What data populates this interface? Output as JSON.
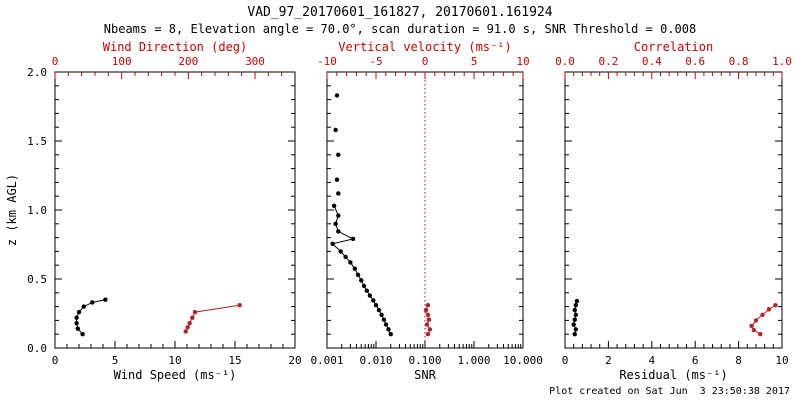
{
  "page": {
    "title": "VAD_97_20170601_161827, 20170601.161924",
    "subtitle": "Nbeams = 8, Elevation angle = 70.0°, scan duration = 91.0 s, SNR Threshold = 0.008",
    "footer": "Plot created on Sat Jun  3 23:50:38 2017",
    "axis_color": "#000000",
    "accent_color": "#cc0000"
  },
  "chart_data": [
    {
      "type": "line",
      "xlabel": "Wind Speed (ms⁻¹)",
      "ylabel": "z (km AGL)",
      "x2label": "Wind Direction (deg)",
      "xscale": "linear",
      "xlim": [
        0,
        20
      ],
      "x2lim": [
        0,
        360
      ],
      "ylim": [
        0,
        2.0
      ],
      "grid": false,
      "legend": false,
      "show_ylabels": true,
      "xticks": [
        {
          "v": 0,
          "l": "0"
        },
        {
          "v": 5,
          "l": "5"
        },
        {
          "v": 10,
          "l": "10"
        },
        {
          "v": 15,
          "l": "15"
        },
        {
          "v": 20,
          "l": "20"
        }
      ],
      "x2ticks": [
        {
          "v": 0,
          "l": "0"
        },
        {
          "v": 100,
          "l": "100"
        },
        {
          "v": 200,
          "l": "200"
        },
        {
          "v": 300,
          "l": "300"
        }
      ],
      "yticks": [
        {
          "v": 0,
          "l": "0.0"
        },
        {
          "v": 0.5,
          "l": "0.5"
        },
        {
          "v": 1,
          "l": "1.0"
        },
        {
          "v": 1.5,
          "l": "1.5"
        },
        {
          "v": 2,
          "l": "2.0"
        }
      ],
      "series": [
        {
          "name": "wind-speed",
          "axis": "x",
          "color": "#000000",
          "points": [
            [
              2.3,
              0.1
            ],
            [
              1.9,
              0.14
            ],
            [
              1.8,
              0.18
            ],
            [
              1.8,
              0.22
            ],
            [
              2.0,
              0.26
            ],
            [
              2.4,
              0.3
            ],
            [
              3.1,
              0.33
            ],
            [
              4.2,
              0.35
            ]
          ]
        },
        {
          "name": "wind-direction",
          "axis": "x2",
          "color": "#b22222",
          "points": [
            [
              196,
              0.12
            ],
            [
              199,
              0.15
            ],
            [
              202,
              0.18
            ],
            [
              206,
              0.22
            ],
            [
              210,
              0.26
            ],
            [
              277,
              0.31
            ]
          ]
        }
      ]
    },
    {
      "type": "line",
      "xlabel": "SNR",
      "ylabel": "",
      "x2label": "Vertical velocity (ms⁻¹)",
      "xscale": "log",
      "xlim": [
        0.001,
        10
      ],
      "x2lim": [
        -10,
        10
      ],
      "ylim": [
        0,
        2.0
      ],
      "grid": false,
      "legend": false,
      "show_ylabels": false,
      "refline_x2": {
        "v": 0,
        "color": "#cc0000",
        "style": "dotted"
      },
      "xticks": [
        {
          "v": 0.001,
          "l": "0.001"
        },
        {
          "v": 0.01,
          "l": "0.010"
        },
        {
          "v": 0.1,
          "l": "0.100"
        },
        {
          "v": 1,
          "l": "1.000"
        },
        {
          "v": 10,
          "l": "10.000"
        }
      ],
      "x2ticks": [
        {
          "v": -10,
          "l": "-10"
        },
        {
          "v": -5,
          "l": "-5"
        },
        {
          "v": 0,
          "l": "0"
        },
        {
          "v": 5,
          "l": "5"
        },
        {
          "v": 10,
          "l": "10"
        }
      ],
      "yticks": [
        {
          "v": 0,
          "l": "0.0"
        },
        {
          "v": 0.5,
          "l": "0.5"
        },
        {
          "v": 1,
          "l": "1.0"
        },
        {
          "v": 1.5,
          "l": "1.5"
        },
        {
          "v": 2,
          "l": "2.0"
        }
      ],
      "series": [
        {
          "name": "snr",
          "axis": "x",
          "color": "#000000",
          "points": [
            [
              0.02,
              0.1
            ],
            [
              0.018,
              0.135
            ],
            [
              0.016,
              0.17
            ],
            [
              0.0145,
              0.205
            ],
            [
              0.013,
              0.24
            ],
            [
              0.0115,
              0.275
            ],
            [
              0.01,
              0.31
            ],
            [
              0.0088,
              0.345
            ],
            [
              0.0075,
              0.38
            ],
            [
              0.0065,
              0.415
            ],
            [
              0.0057,
              0.45
            ],
            [
              0.005,
              0.49
            ],
            [
              0.0043,
              0.53
            ],
            [
              0.0037,
              0.575
            ],
            [
              0.003,
              0.62
            ],
            [
              0.0024,
              0.66
            ],
            [
              0.0019,
              0.7
            ],
            [
              0.0013,
              0.755
            ],
            [
              0.0034,
              0.79
            ],
            [
              0.0017,
              0.845
            ],
            [
              0.0015,
              0.9
            ],
            [
              0.0017,
              0.96
            ],
            [
              0.0014,
              1.03
            ]
          ]
        },
        {
          "name": "snr-upper",
          "axis": "x",
          "color": "#000000",
          "line": false,
          "points": [
            [
              0.0017,
              1.12
            ],
            [
              0.0016,
              1.22
            ],
            [
              0.0017,
              1.4
            ],
            [
              0.0015,
              1.58
            ],
            [
              0.0016,
              1.83
            ]
          ]
        },
        {
          "name": "vertical-velocity",
          "axis": "x2",
          "color": "#b22222",
          "points": [
            [
              0.3,
              0.1
            ],
            [
              0.5,
              0.135
            ],
            [
              0.2,
              0.17
            ],
            [
              0.4,
              0.205
            ],
            [
              0.3,
              0.24
            ],
            [
              0.1,
              0.275
            ],
            [
              0.3,
              0.31
            ]
          ]
        }
      ]
    },
    {
      "type": "line",
      "xlabel": "Residual (ms⁻¹)",
      "ylabel": "",
      "x2label": "Correlation",
      "xscale": "linear",
      "xlim": [
        0,
        10
      ],
      "x2lim": [
        0,
        1.0
      ],
      "ylim": [
        0,
        2.0
      ],
      "grid": false,
      "legend": false,
      "show_ylabels": false,
      "xticks": [
        {
          "v": 0,
          "l": "0"
        },
        {
          "v": 2,
          "l": "2"
        },
        {
          "v": 4,
          "l": "4"
        },
        {
          "v": 6,
          "l": "6"
        },
        {
          "v": 8,
          "l": "8"
        },
        {
          "v": 10,
          "l": "10"
        }
      ],
      "x2ticks": [
        {
          "v": 0,
          "l": "0.0"
        },
        {
          "v": 0.2,
          "l": "0.2"
        },
        {
          "v": 0.4,
          "l": "0.4"
        },
        {
          "v": 0.6,
          "l": "0.6"
        },
        {
          "v": 0.8,
          "l": "0.8"
        },
        {
          "v": 1,
          "l": "1.0"
        }
      ],
      "yticks": [
        {
          "v": 0,
          "l": "0.0"
        },
        {
          "v": 0.5,
          "l": "0.5"
        },
        {
          "v": 1,
          "l": "1.0"
        },
        {
          "v": 1.5,
          "l": "1.5"
        },
        {
          "v": 2,
          "l": "2.0"
        }
      ],
      "series": [
        {
          "name": "residual",
          "axis": "x",
          "color": "#000000",
          "points": [
            [
              0.45,
              0.1
            ],
            [
              0.5,
              0.135
            ],
            [
              0.4,
              0.17
            ],
            [
              0.45,
              0.205
            ],
            [
              0.5,
              0.24
            ],
            [
              0.45,
              0.275
            ],
            [
              0.5,
              0.31
            ],
            [
              0.55,
              0.34
            ]
          ]
        },
        {
          "name": "correlation",
          "axis": "x2",
          "color": "#b22222",
          "points": [
            [
              0.9,
              0.1
            ],
            [
              0.87,
              0.13
            ],
            [
              0.86,
              0.16
            ],
            [
              0.88,
              0.2
            ],
            [
              0.91,
              0.24
            ],
            [
              0.94,
              0.28
            ],
            [
              0.97,
              0.31
            ]
          ]
        }
      ]
    }
  ]
}
